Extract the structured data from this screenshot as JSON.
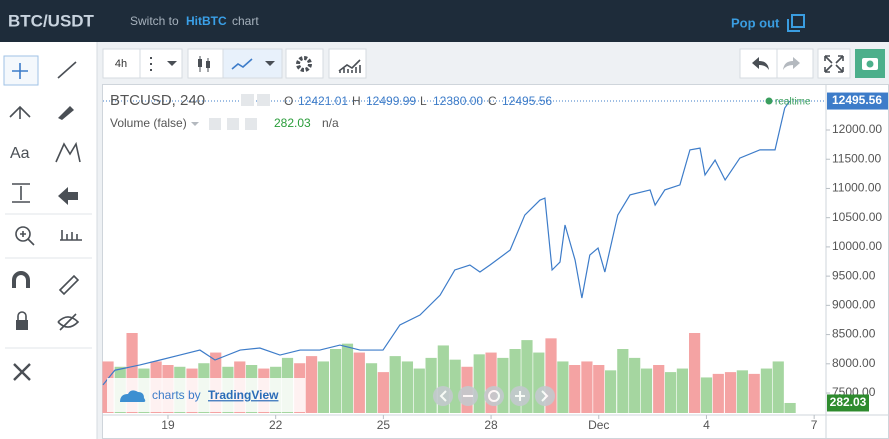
{
  "header": {
    "title": "BTC/USDT",
    "switch_prefix": "Switch to",
    "switch_link": "HitBTC",
    "switch_suffix": "chart",
    "popout": "Pop out"
  },
  "toolbar": {
    "interval": "4h"
  },
  "legend": {
    "symbol": "BTCUSD, 240",
    "o": "O",
    "open": "12421.01",
    "h": "H",
    "high": "12499.99",
    "l": "L",
    "low": "12380.00",
    "c": "C",
    "close": "12495.56",
    "volume_name": "Volume (false)",
    "volume": "282.03",
    "volume_ma": "n/a",
    "realtime": "realtime"
  },
  "watermark": {
    "prefix": "charts by",
    "brand": "TradingView"
  },
  "chart_data": {
    "type": "line",
    "x": [
      17.19,
      17.52,
      18.22,
      18.78,
      19.33,
      19.89,
      20.31,
      21.01,
      21.56,
      22.12,
      22.68,
      23.23,
      23.79,
      24.35,
      24.99,
      25.46,
      26.02,
      26.58,
      26.99,
      27.41,
      27.69,
      27.97,
      28.53,
      28.94,
      29.36,
      29.5,
      29.7,
      29.92,
      30.06,
      30.34,
      30.53,
      30.75,
      30.98,
      31.17,
      31.53,
      31.87,
      32.43,
      32.57,
      32.84,
      33.26,
      33.54,
      33.82,
      33.96,
      34.24,
      34.52,
      34.93,
      35.49,
      35.91,
      36.18,
      36.32
    ],
    "series": [
      {
        "color": "#3d7cc9",
        "values": [
          7640,
          7890,
          7980,
          8065,
          8150,
          8235,
          8065,
          8235,
          8270,
          8150,
          8235,
          8235,
          8320,
          8235,
          8235,
          8665,
          8835,
          9175,
          9605,
          9690,
          9570,
          9690,
          9945,
          10545,
          10800,
          10835,
          9605,
          9740,
          10375,
          9775,
          9125,
          9860,
          9980,
          9570,
          10545,
          10890,
          10975,
          10715,
          10975,
          11060,
          11660,
          11690,
          11230,
          11485,
          11145,
          11520,
          11660,
          11660,
          12375,
          12495
        ]
      }
    ],
    "volume": {
      "x": [
        17.33,
        17.67,
        18,
        18.33,
        18.67,
        19,
        19.33,
        19.67,
        20,
        20.33,
        20.67,
        21,
        21.33,
        21.67,
        22,
        22.33,
        22.67,
        23,
        23.33,
        23.67,
        24,
        24.33,
        24.67,
        25,
        25.33,
        25.67,
        26,
        26.33,
        26.67,
        27,
        27.33,
        27.67,
        28,
        28.33,
        28.67,
        29,
        29.33,
        29.67,
        30,
        30.33,
        30.67,
        31,
        31.33,
        31.67,
        32,
        32.33,
        32.67,
        33,
        33.33,
        33.67,
        34,
        34.33,
        34.67,
        35,
        35.33,
        35.67,
        36,
        36.33
      ],
      "values": [
        1450,
        1300,
        2250,
        1250,
        1450,
        1350,
        1300,
        1250,
        1400,
        1700,
        1300,
        1450,
        1350,
        1250,
        1300,
        1550,
        1400,
        1600,
        1450,
        1800,
        1950,
        1700,
        1400,
        1150,
        1600,
        1450,
        1250,
        1550,
        1900,
        1500,
        1300,
        1650,
        1700,
        1550,
        1800,
        2050,
        1700,
        2100,
        1450,
        1350,
        1450,
        1350,
        1200,
        1800,
        1550,
        1250,
        1350,
        1150,
        1250,
        2250,
        1000,
        1100,
        1150,
        1200,
        1100,
        1250,
        1450,
        282.03
      ],
      "colors": [
        "#f4a3a3",
        "#a5d6a0",
        "#f4a3a3",
        "#a5d6a0",
        "#f4a3a3",
        "#f4a3a3",
        "#a5d6a0",
        "#f4a3a3",
        "#a5d6a0",
        "#f4a3a3",
        "#a5d6a0",
        "#f4a3a3",
        "#a5d6a0",
        "#f4a3a3",
        "#a5d6a0",
        "#a5d6a0",
        "#f4a3a3",
        "#f4a3a3",
        "#a5d6a0",
        "#a5d6a0",
        "#a5d6a0",
        "#f4a3a3",
        "#a5d6a0",
        "#f4a3a3",
        "#a5d6a0",
        "#a5d6a0",
        "#a5d6a0",
        "#a5d6a0",
        "#a5d6a0",
        "#a5d6a0",
        "#f4a3a3",
        "#a5d6a0",
        "#f4a3a3",
        "#a5d6a0",
        "#a5d6a0",
        "#a5d6a0",
        "#a5d6a0",
        "#f4a3a3",
        "#a5d6a0",
        "#f4a3a3",
        "#f4a3a3",
        "#f4a3a3",
        "#a5d6a0",
        "#a5d6a0",
        "#a5d6a0",
        "#a5d6a0",
        "#f4a3a3",
        "#a5d6a0",
        "#a5d6a0",
        "#f4a3a3",
        "#a5d6a0",
        "#f4a3a3",
        "#f4a3a3",
        "#a5d6a0",
        "#f4a3a3",
        "#a5d6a0",
        "#a5d6a0",
        "#a5d6a0"
      ]
    },
    "price_label": {
      "value": 12495.56,
      "label": "12495.56"
    },
    "volume_label": {
      "value": 282.03,
      "label": "282.03"
    },
    "xlim": [
      17.19,
      37.33
    ],
    "xticks": [
      19,
      22,
      25,
      28,
      {
        "value": 31,
        "label": "Dec"
      },
      {
        "value": 34,
        "label": "4"
      },
      {
        "value": 37,
        "label": "7"
      }
    ],
    "ylim": [
      7124,
      12770
    ],
    "yticks": [
      {
        "value": 7500,
        "label": "7500.00"
      },
      {
        "value": 8000,
        "label": "8000.00"
      },
      {
        "value": 8500,
        "label": "8500.00"
      },
      {
        "value": 9000,
        "label": "9000.00"
      },
      {
        "value": 9500,
        "label": "9500.00"
      },
      {
        "value": 10000,
        "label": "10000.00"
      },
      {
        "value": 10500,
        "label": "10500.00"
      },
      {
        "value": 11000,
        "label": "11000.00"
      },
      {
        "value": 11500,
        "label": "11500.00"
      },
      {
        "value": 12000,
        "label": "12000.00"
      }
    ]
  }
}
